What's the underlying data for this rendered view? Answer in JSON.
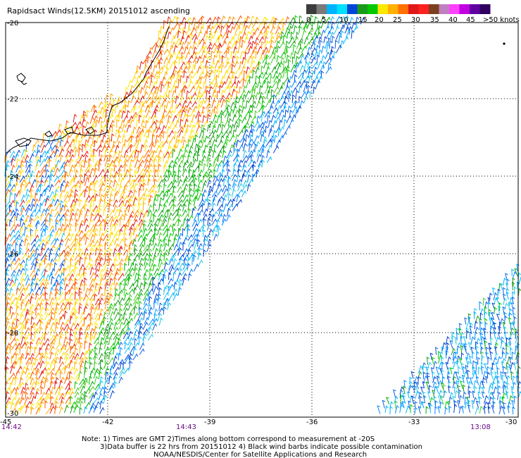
{
  "title": "Rapidsact Winds(12.5KM) 20151012 ascending",
  "legend": {
    "labels": [
      "0",
      "5",
      "10",
      "15",
      "20",
      "25",
      "30",
      "35",
      "40",
      "45",
      ">50 knots"
    ],
    "colors": [
      "#3c3c3c",
      "#7a7a7a",
      "#00b4ff",
      "#00e0ff",
      "#0046d8",
      "#1a9a1a",
      "#00c800",
      "#ffe800",
      "#ffb000",
      "#ff7000",
      "#e01818",
      "#ff2020",
      "#7a4020",
      "#c080c0",
      "#ff40ff",
      "#c000e0",
      "#6000a0",
      "#300060"
    ]
  },
  "lat_labels": [
    "-20",
    "-22",
    "-24",
    "-26",
    "-28",
    "-30"
  ],
  "lon_labels": [
    "-45",
    "-42",
    "-39",
    "-36",
    "-33",
    "-30"
  ],
  "times": {
    "left": "14:42",
    "middle": "14:43",
    "right": "13:08"
  },
  "notes": {
    "line1": "Note: 1) Times are GMT 2)Times along bottom correspond to measurement at -20S",
    "line2": "3)Data buffer is 22 hrs from 20151012 4) Black wind barbs indicate possible contamination",
    "line3": "NOAA/NESDIS/Center for Satellite Applications and Research"
  },
  "palette": {
    "frame": "#000000",
    "grid": "#000000",
    "coast": "#000000",
    "time_color": "#6a0a8a"
  }
}
